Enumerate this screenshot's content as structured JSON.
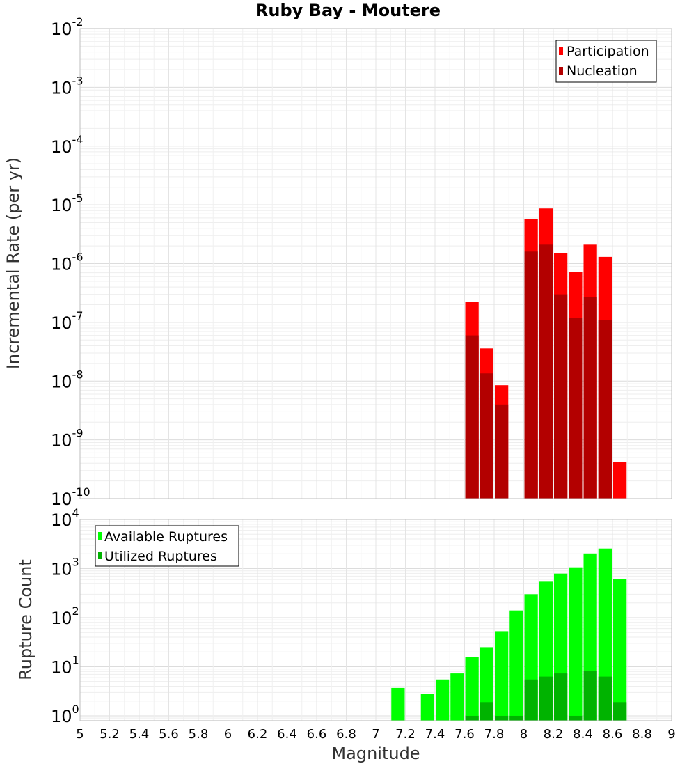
{
  "title": "Ruby Bay - Moutere",
  "colors": {
    "participation": "#ff0000",
    "nucleation": "#b30000",
    "available": "#00ff00",
    "utilized": "#00b300",
    "grid": "#e6e6e6",
    "frame": "#bdbdbd"
  },
  "chart_data": [
    {
      "type": "bar",
      "name": "rate-panel",
      "scale": "log",
      "ylabel": "Incremental Rate (per yr)",
      "ylim_exp": [
        -10,
        -2
      ],
      "ytick_exps": [
        "-10",
        "-9",
        "-8",
        "-7",
        "-6",
        "-5",
        "-4",
        "-3",
        "-2"
      ],
      "ytick_base": "10",
      "legend_position": "top-right",
      "x": [
        7.65,
        7.75,
        7.85,
        8.05,
        8.15,
        8.25,
        8.35,
        8.45,
        8.55,
        8.65
      ],
      "series": [
        {
          "name": "Participation",
          "color": "#ff0000",
          "values": [
            2.2e-07,
            3.6e-08,
            8.5e-09,
            5.8e-06,
            8.7e-06,
            1.5e-06,
            7.2e-07,
            2.1e-06,
            1.3e-06,
            4.2e-10
          ]
        },
        {
          "name": "Nucleation",
          "color": "#b30000",
          "values": [
            6e-08,
            1.35e-08,
            4e-09,
            1.6e-06,
            2.1e-06,
            3e-07,
            1.2e-07,
            2.7e-07,
            1.1e-07,
            null
          ]
        }
      ]
    },
    {
      "type": "bar",
      "name": "count-panel",
      "scale": "log",
      "ylabel": "Rupture Count",
      "ylim_exp": [
        -0.1,
        4
      ],
      "ytick_exps": [
        "0",
        "1",
        "2",
        "3",
        "4"
      ],
      "ytick_base": "10",
      "legend_position": "top-left",
      "x": [
        7.15,
        7.35,
        7.45,
        7.55,
        7.65,
        7.75,
        7.85,
        7.95,
        8.05,
        8.15,
        8.25,
        8.35,
        8.45,
        8.55,
        8.65
      ],
      "series": [
        {
          "name": "Available Ruptures",
          "color": "#00ff00",
          "values": [
            3.7,
            2.8,
            5.5,
            7.3,
            16,
            25,
            53,
            140,
            300,
            540,
            790,
            1060,
            2030,
            2560,
            620
          ]
        },
        {
          "name": "Utilized Ruptures",
          "color": "#00b300",
          "values": [
            null,
            null,
            null,
            null,
            1,
            1.9,
            1,
            1,
            5.5,
            6.3,
            7.3,
            1,
            8.2,
            6.3,
            1.9
          ]
        }
      ]
    }
  ],
  "xaxis": {
    "label": "Magnitude",
    "range": [
      5,
      9
    ],
    "ticks": [
      "5",
      "5.2",
      "5.4",
      "5.6",
      "5.8",
      "6",
      "6.2",
      "6.4",
      "6.6",
      "6.8",
      "7",
      "7.2",
      "7.4",
      "7.6",
      "7.8",
      "8",
      "8.2",
      "8.4",
      "8.6",
      "8.8",
      "9"
    ]
  }
}
